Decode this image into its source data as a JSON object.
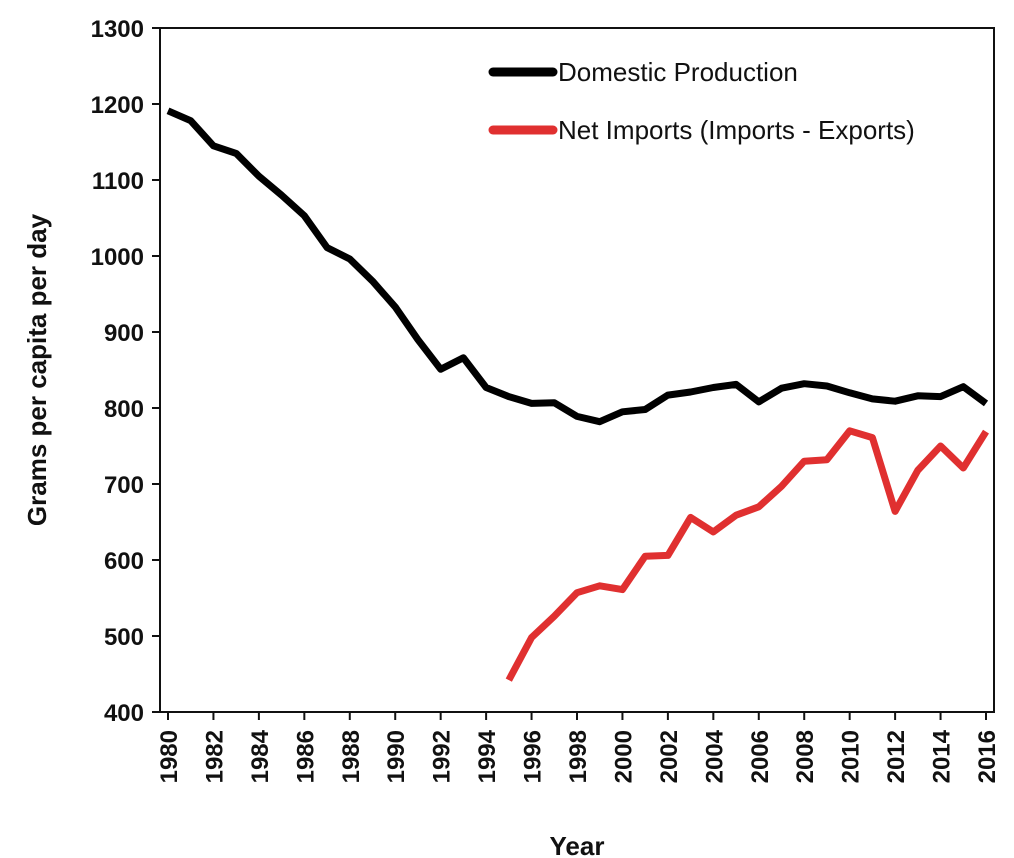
{
  "chart_data": {
    "type": "line",
    "title": "",
    "xlabel": "Year",
    "ylabel": "Grams per capita per day",
    "xlim": [
      1980,
      2016
    ],
    "ylim": [
      400,
      1300
    ],
    "y_ticks": [
      1300,
      1200,
      1100,
      1000,
      900,
      800,
      700,
      600,
      500,
      400
    ],
    "x_ticks": [
      1980,
      1982,
      1984,
      1986,
      1988,
      1990,
      1992,
      1994,
      1996,
      1998,
      2000,
      2002,
      2004,
      2006,
      2008,
      2010,
      2012,
      2014,
      2016
    ],
    "grid": false,
    "legend_position": "top-right",
    "series": [
      {
        "name": "Domestic Production",
        "color": "#000000",
        "x": [
          1980,
          1981,
          1982,
          1983,
          1984,
          1985,
          1986,
          1987,
          1988,
          1989,
          1990,
          1991,
          1992,
          1993,
          1994,
          1995,
          1996,
          1997,
          1998,
          1999,
          2000,
          2001,
          2002,
          2003,
          2004,
          2005,
          2006,
          2007,
          2008,
          2009,
          2010,
          2011,
          2012,
          2013,
          2014,
          2015,
          2016
        ],
        "values": [
          1191,
          1178,
          1145,
          1135,
          1105,
          1080,
          1053,
          1011,
          996,
          967,
          933,
          890,
          851,
          866,
          827,
          815,
          806,
          807,
          789,
          782,
          795,
          798,
          817,
          821,
          827,
          831,
          808,
          826,
          832,
          829,
          820,
          812,
          809,
          816,
          815,
          828,
          806
        ]
      },
      {
        "name": "Net Imports (Imports - Exports)",
        "color": "#e03030",
        "x": [
          1995,
          1996,
          1997,
          1998,
          1999,
          2000,
          2001,
          2002,
          2003,
          2004,
          2005,
          2006,
          2007,
          2008,
          2009,
          2010,
          2011,
          2012,
          2013,
          2014,
          2015,
          2016
        ],
        "values": [
          442,
          498,
          526,
          557,
          566,
          561,
          605,
          606,
          656,
          637,
          659,
          670,
          697,
          730,
          732,
          770,
          761,
          664,
          718,
          750,
          721,
          769
        ]
      }
    ]
  }
}
